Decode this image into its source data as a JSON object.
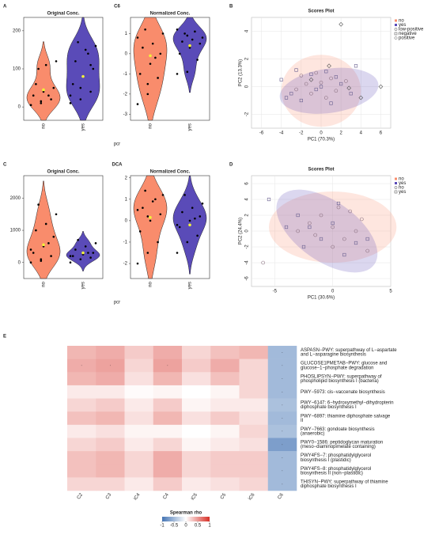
{
  "chart_data": [
    {
      "type": "violin",
      "panel": "A",
      "panel_title": "C6",
      "title": "Original Conc.",
      "xlabel": "pcr",
      "categories": [
        "no",
        "yes"
      ],
      "colors": [
        "#f98c6c",
        "#5a4bb8"
      ],
      "mean_color": "#f2f23a",
      "values": [
        [
          5,
          10,
          20,
          30,
          40,
          50,
          60,
          110,
          120,
          100,
          30,
          5,
          15
        ],
        [
          10,
          20,
          40,
          60,
          80,
          100,
          120,
          150,
          160,
          170,
          140,
          30,
          50,
          110
        ]
      ],
      "means": [
        45,
        80
      ],
      "ylim": [
        -35,
        235
      ],
      "yticks": [
        0,
        100,
        200
      ]
    },
    {
      "type": "violin",
      "title": "Normalized Conc.",
      "categories": [
        "no",
        "yes"
      ],
      "colors": [
        "#f98c6c",
        "#5a4bb8"
      ],
      "mean_color": "#f2f23a",
      "values": [
        [
          -2.5,
          -2,
          -1.2,
          -1,
          -0.5,
          0,
          0.3,
          0.5,
          1,
          1.2,
          -0.2,
          0.8,
          -1.5
        ],
        [
          -1,
          -0.9,
          -0.3,
          0,
          0.3,
          0.5,
          0.6,
          0.7,
          0.8,
          1,
          1.1,
          1.2,
          0.9
        ]
      ],
      "means": [
        -0.1,
        0.4
      ],
      "ylim": [
        -3.3,
        1.8
      ],
      "yticks": [
        -3,
        -2,
        -1,
        0,
        1
      ]
    },
    {
      "type": "scatter",
      "panel": "B",
      "title": "Scores Plot",
      "xlabel": "PC1 (70.3%)",
      "ylabel": "PC2 (13.3%)",
      "xlim": [
        -7,
        7
      ],
      "ylim": [
        -3,
        5
      ],
      "xticks": [
        -6,
        -4,
        -2,
        0,
        2,
        4,
        6
      ],
      "yticks": [
        -2,
        0,
        2,
        4
      ],
      "grid": true,
      "ellipses": [
        {
          "name": "no",
          "color": "#f98c6c",
          "cx": 0,
          "cy": -0.3,
          "rx": 4,
          "ry": 2.6,
          "angle": 0
        },
        {
          "name": "yes",
          "color": "#5a4bb8",
          "cx": 0.8,
          "cy": -0.3,
          "rx": 5,
          "ry": 1.6,
          "angle": -8
        }
      ],
      "series": [
        {
          "name": "low-positive",
          "shape": "circle",
          "color": "#8a7080",
          "x": [
            -2,
            -1.5,
            -1,
            -0.5,
            0,
            0.5,
            1,
            1.5,
            -2.5,
            2.5
          ],
          "y": [
            0.8,
            0.2,
            -0.5,
            1,
            0.3,
            -0.8,
            0.6,
            -0.3,
            -0.2,
            0.4
          ]
        },
        {
          "name": "negative",
          "shape": "square",
          "color": "#6a6090",
          "x": [
            -4,
            -3,
            -2.5,
            -2,
            -1,
            -0.5,
            0.5,
            1,
            2,
            3,
            3.5,
            -3.5,
            0,
            1.5
          ],
          "y": [
            0.5,
            -0.5,
            1.2,
            -1,
            0.9,
            -0.2,
            1.1,
            -1.2,
            0.2,
            -0.5,
            1.5,
            -0.8,
            0,
            0.7
          ]
        },
        {
          "name": "positive",
          "shape": "diamond",
          "color": "#555555",
          "x": [
            2,
            6,
            4,
            -1,
            0.8,
            2.8
          ],
          "y": [
            4.5,
            0,
            -0.8,
            0.5,
            1.5,
            -0.1
          ]
        }
      ]
    },
    {
      "type": "violin",
      "panel": "C",
      "panel_title": "DCA",
      "title": "Original Conc.",
      "xlabel": "pcr",
      "categories": [
        "no",
        "yes"
      ],
      "colors": [
        "#f98c6c",
        "#5a4bb8"
      ],
      "mean_color": "#f2f23a",
      "values": [
        [
          0,
          100,
          200,
          300,
          500,
          800,
          1000,
          1200,
          1500,
          1800,
          600,
          400,
          50
        ],
        [
          0,
          100,
          150,
          200,
          250,
          300,
          400,
          500,
          600,
          700,
          300,
          200
        ]
      ],
      "means": [
        550,
        300
      ],
      "ylim": [
        -500,
        2700
      ],
      "yticks": [
        0,
        1000,
        2000
      ]
    },
    {
      "type": "violin",
      "title": "Normalized Conc.",
      "categories": [
        "no",
        "yes"
      ],
      "colors": [
        "#f98c6c",
        "#5a4bb8"
      ],
      "mean_color": "#f2f23a",
      "values": [
        [
          -2,
          -1.5,
          -1,
          -0.5,
          0,
          0.3,
          0.6,
          0.9,
          1.2,
          1.4,
          1,
          0.5,
          0.2
        ],
        [
          -1.5,
          -1,
          -0.7,
          -0.3,
          0,
          0.2,
          0.4,
          0.6,
          0.8,
          1.2,
          0.1,
          -0.2
        ]
      ],
      "means": [
        0.15,
        -0.2
      ],
      "ylim": [
        -2.7,
        2.1
      ],
      "yticks": [
        -2,
        -1,
        0,
        1,
        2
      ]
    },
    {
      "type": "scatter",
      "panel": "D",
      "title": "Scores Plot",
      "xlabel": "PC1 (30.6%)",
      "ylabel": "PC2 (24.4%)",
      "xlim": [
        -7,
        5
      ],
      "ylim": [
        -7,
        7
      ],
      "xticks": [
        -5,
        0,
        5
      ],
      "yticks": [
        -6,
        -4,
        -2,
        0,
        2,
        4,
        6
      ],
      "grid": true,
      "ellipses": [
        {
          "name": "no",
          "color": "#f98c6c",
          "cx": 0,
          "cy": 0.5,
          "rx": 5.5,
          "ry": 4.5,
          "angle": 0
        },
        {
          "name": "yes",
          "color": "#5a4bb8",
          "cx": -0.5,
          "cy": 0,
          "rx": 5,
          "ry": 3.8,
          "angle": 35
        }
      ],
      "series": [
        {
          "name": "no",
          "shape": "circle",
          "color": "#8a7080",
          "x": [
            -6,
            -2,
            -1,
            0,
            0.5,
            1,
            2,
            2.5,
            -1.5,
            1.5,
            0,
            3,
            -3
          ],
          "y": [
            -4,
            1,
            2,
            0.5,
            3,
            -1,
            0,
            1.5,
            -0.5,
            2.5,
            -2,
            -2.5,
            0
          ]
        },
        {
          "name": "yes",
          "shape": "square",
          "color": "#6a6090",
          "x": [
            -5.5,
            -3,
            -2.5,
            -1,
            0,
            1,
            2,
            -2,
            -4,
            0.5,
            3
          ],
          "y": [
            4,
            2,
            -2,
            -1,
            1,
            -3,
            -1.5,
            0.5,
            0.5,
            3.5,
            -1
          ]
        }
      ]
    },
    {
      "type": "heatmap",
      "panel": "E",
      "columns": [
        "C2",
        "C3",
        "iC4",
        "C4",
        "iC5",
        "C5",
        "iC6",
        "C6"
      ],
      "rows": [
        [
          "ASPASN−PWY: superpathway of L−aspartate",
          "and L−asparagine biosynthesis"
        ],
        [
          "GLUCOSE1PMETAB−PWY: glucose and",
          "glucose−1−phosphate degradation"
        ],
        [
          "PHOSLIPSYN−PWY: superpathway of",
          "phospholipid biosynthesis I (bacteria)"
        ],
        [
          "PWY−5973: cis−vaccenate biosynthesis"
        ],
        [
          "PWY−6147: 6−hydroxymethyl−dihydropterin",
          "diphosphate biosynthesis I"
        ],
        [
          "PWY−6897: thiamine diphosphate salvage",
          "II"
        ],
        [
          "PWY−7663: gondoate biosynthesis",
          "(anaerobic)"
        ],
        [
          "PWY0−1586: peptidoglycan maturation",
          "(meso−diaminopimelate containing)"
        ],
        [
          "PWY4FS−7: phosphatidylglycerol",
          "biosynthesis I (plastidic)"
        ],
        [
          "PWY4FS−8: phosphatidylglycerol",
          "biosynthesis II (non−plastidic)"
        ],
        [
          "THISYN−PWY: superpathway of thiamine",
          "diphosphate biosynthesis I"
        ]
      ],
      "values": [
        [
          0.35,
          0.4,
          0.25,
          0.4,
          0.2,
          0.3,
          0.35,
          -0.5
        ],
        [
          0.4,
          0.45,
          0.2,
          0.45,
          0.25,
          0.4,
          0.2,
          -0.5
        ],
        [
          0.35,
          0.4,
          0.15,
          0.35,
          0.15,
          0.3,
          0.2,
          -0.5
        ],
        [
          0.1,
          0.1,
          0.02,
          0.05,
          0,
          0.05,
          0.2,
          -0.5
        ],
        [
          0.2,
          0.25,
          0.1,
          0.25,
          0.05,
          0.1,
          0.1,
          -0.45
        ],
        [
          0.3,
          0.35,
          0.15,
          0.35,
          0.15,
          0.25,
          0.15,
          -0.5
        ],
        [
          0.1,
          0.15,
          0.05,
          0.05,
          0,
          0.05,
          0.2,
          -0.45
        ],
        [
          0.2,
          0.25,
          0.1,
          0.2,
          0.05,
          0.1,
          0.15,
          -0.7
        ],
        [
          0.3,
          0.35,
          0.2,
          0.4,
          0.2,
          0.25,
          0.25,
          -0.5
        ],
        [
          0.3,
          0.35,
          0.2,
          0.4,
          0.2,
          0.25,
          0.25,
          -0.5
        ],
        [
          0.2,
          0.2,
          0.1,
          0.25,
          0.1,
          0.15,
          0.2,
          -0.5
        ]
      ],
      "sig_marker": "·",
      "significant": [
        [
          0,
          7
        ],
        [
          1,
          0
        ],
        [
          1,
          1
        ],
        [
          1,
          3
        ],
        [
          1,
          7
        ],
        [
          2,
          7
        ],
        [
          3,
          7
        ],
        [
          4,
          7
        ],
        [
          5,
          7
        ],
        [
          6,
          7
        ],
        [
          7,
          7
        ],
        [
          8,
          7
        ],
        [
          9,
          7
        ],
        [
          10,
          7
        ]
      ],
      "colormap": [
        "#4575b4",
        "#ffffff",
        "#d73027"
      ],
      "clim": [
        -1,
        1
      ],
      "colorbar_title": "Spearman rho",
      "colorbar_ticks": [
        -1,
        -0.5,
        0,
        0.5,
        1
      ]
    }
  ]
}
